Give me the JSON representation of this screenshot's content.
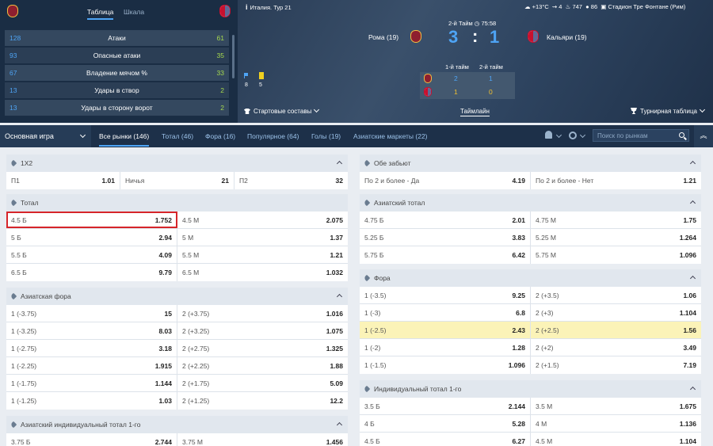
{
  "stats": {
    "tabs": [
      "Таблица",
      "Шкала"
    ],
    "rows": [
      {
        "home": "128",
        "name": "Атаки",
        "away": "61"
      },
      {
        "home": "93",
        "name": "Опасные атаки",
        "away": "35"
      },
      {
        "home": "67",
        "name": "Владение мячом %",
        "away": "33"
      },
      {
        "home": "13",
        "name": "Удары в створ",
        "away": "2"
      },
      {
        "home": "13",
        "name": "Удары в сторону ворот",
        "away": "2"
      }
    ]
  },
  "match": {
    "league": "Италия. Тур 21",
    "weather": "+13°C",
    "wind": "4",
    "pressure": "747",
    "humidity": "86",
    "stadium": "Стадион Тре Фонтане (Рим)",
    "period": "2-й Тайм",
    "time": "75:58",
    "home_team": "Рома (19)",
    "away_team": "Кальяри (19)",
    "home_score": "3",
    "sep": ":",
    "away_score": "1",
    "home_color": "#8e1f2f",
    "away_color": "#c8102e",
    "half1_label": "1-й тайм",
    "half2_label": "2-й тайм",
    "half_scores": {
      "home_h1": "2",
      "home_h2": "1",
      "away_h1": "1",
      "away_h2": "0"
    },
    "corners": "8",
    "yellow_cards": "5",
    "lineups_label": "Стартовые составы",
    "timeline_label": "Таймлайн",
    "standings_label": "Турнирная таблица"
  },
  "tabsbar": {
    "game_select": "Основная игра",
    "tabs": [
      "Все рынки (146)",
      "Тотал (46)",
      "Фора (16)",
      "Популярное (64)",
      "Голы (19)",
      "Азиатские маркеты (22)"
    ],
    "search_placeholder": "Поиск по рынкам"
  },
  "markets_left": [
    {
      "title": "1X2",
      "rows": [
        [
          [
            "П1",
            "1.01"
          ],
          [
            "Ничья",
            "21"
          ],
          [
            "П2",
            "32"
          ]
        ]
      ]
    },
    {
      "title": "Тотал",
      "rows": [
        [
          [
            "4.5 Б",
            "1.752"
          ],
          [
            "4.5 М",
            "2.075"
          ]
        ],
        [
          [
            "5 Б",
            "2.94"
          ],
          [
            "5 М",
            "1.37"
          ]
        ],
        [
          [
            "5.5 Б",
            "4.09"
          ],
          [
            "5.5 М",
            "1.21"
          ]
        ],
        [
          [
            "6.5 Б",
            "9.79"
          ],
          [
            "6.5 М",
            "1.032"
          ]
        ]
      ]
    },
    {
      "title": "Азиатская фора",
      "rows": [
        [
          [
            "1 (-3.75)",
            "15"
          ],
          [
            "2 (+3.75)",
            "1.016"
          ]
        ],
        [
          [
            "1 (-3.25)",
            "8.03"
          ],
          [
            "2 (+3.25)",
            "1.075"
          ]
        ],
        [
          [
            "1 (-2.75)",
            "3.18"
          ],
          [
            "2 (+2.75)",
            "1.325"
          ]
        ],
        [
          [
            "1 (-2.25)",
            "1.915"
          ],
          [
            "2 (+2.25)",
            "1.88"
          ]
        ],
        [
          [
            "1 (-1.75)",
            "1.144"
          ],
          [
            "2 (+1.75)",
            "5.09"
          ]
        ],
        [
          [
            "1 (-1.25)",
            "1.03"
          ],
          [
            "2 (+1.25)",
            "12.2"
          ]
        ]
      ]
    },
    {
      "title": "Азиатский индивидуальный тотал 1-го",
      "rows": [
        [
          [
            "3.75 Б",
            "2.744"
          ],
          [
            "3.75 М",
            "1.456"
          ]
        ]
      ]
    }
  ],
  "markets_right": [
    {
      "title": "Обе забьют",
      "rows": [
        [
          [
            "По 2 и более - Да",
            "4.19"
          ],
          [
            "По 2 и более - Нет",
            "1.21"
          ]
        ]
      ]
    },
    {
      "title": "Азиатский тотал",
      "rows": [
        [
          [
            "4.75 Б",
            "2.01"
          ],
          [
            "4.75 М",
            "1.75"
          ]
        ],
        [
          [
            "5.25 Б",
            "3.83"
          ],
          [
            "5.25 М",
            "1.264"
          ]
        ],
        [
          [
            "5.75 Б",
            "6.42"
          ],
          [
            "5.75 М",
            "1.096"
          ]
        ]
      ]
    },
    {
      "title": "Фора",
      "rows": [
        [
          [
            "1 (-3.5)",
            "9.25"
          ],
          [
            "2 (+3.5)",
            "1.06"
          ]
        ],
        [
          [
            "1 (-3)",
            "6.8"
          ],
          [
            "2 (+3)",
            "1.104"
          ]
        ],
        [
          [
            "1 (-2.5)",
            "2.43"
          ],
          [
            "2 (+2.5)",
            "1.56"
          ]
        ],
        [
          [
            "1 (-2)",
            "1.28"
          ],
          [
            "2 (+2)",
            "3.49"
          ]
        ],
        [
          [
            "1 (-1.5)",
            "1.096"
          ],
          [
            "2 (+1.5)",
            "7.19"
          ]
        ]
      ]
    },
    {
      "title": "Индивидуальный тотал 1-го",
      "rows": [
        [
          [
            "3.5 Б",
            "2.144"
          ],
          [
            "3.5 М",
            "1.675"
          ]
        ],
        [
          [
            "4 Б",
            "5.28"
          ],
          [
            "4 М",
            "1.136"
          ]
        ],
        [
          [
            "4.5 Б",
            "6.27"
          ],
          [
            "4.5 М",
            "1.104"
          ]
        ]
      ]
    }
  ]
}
